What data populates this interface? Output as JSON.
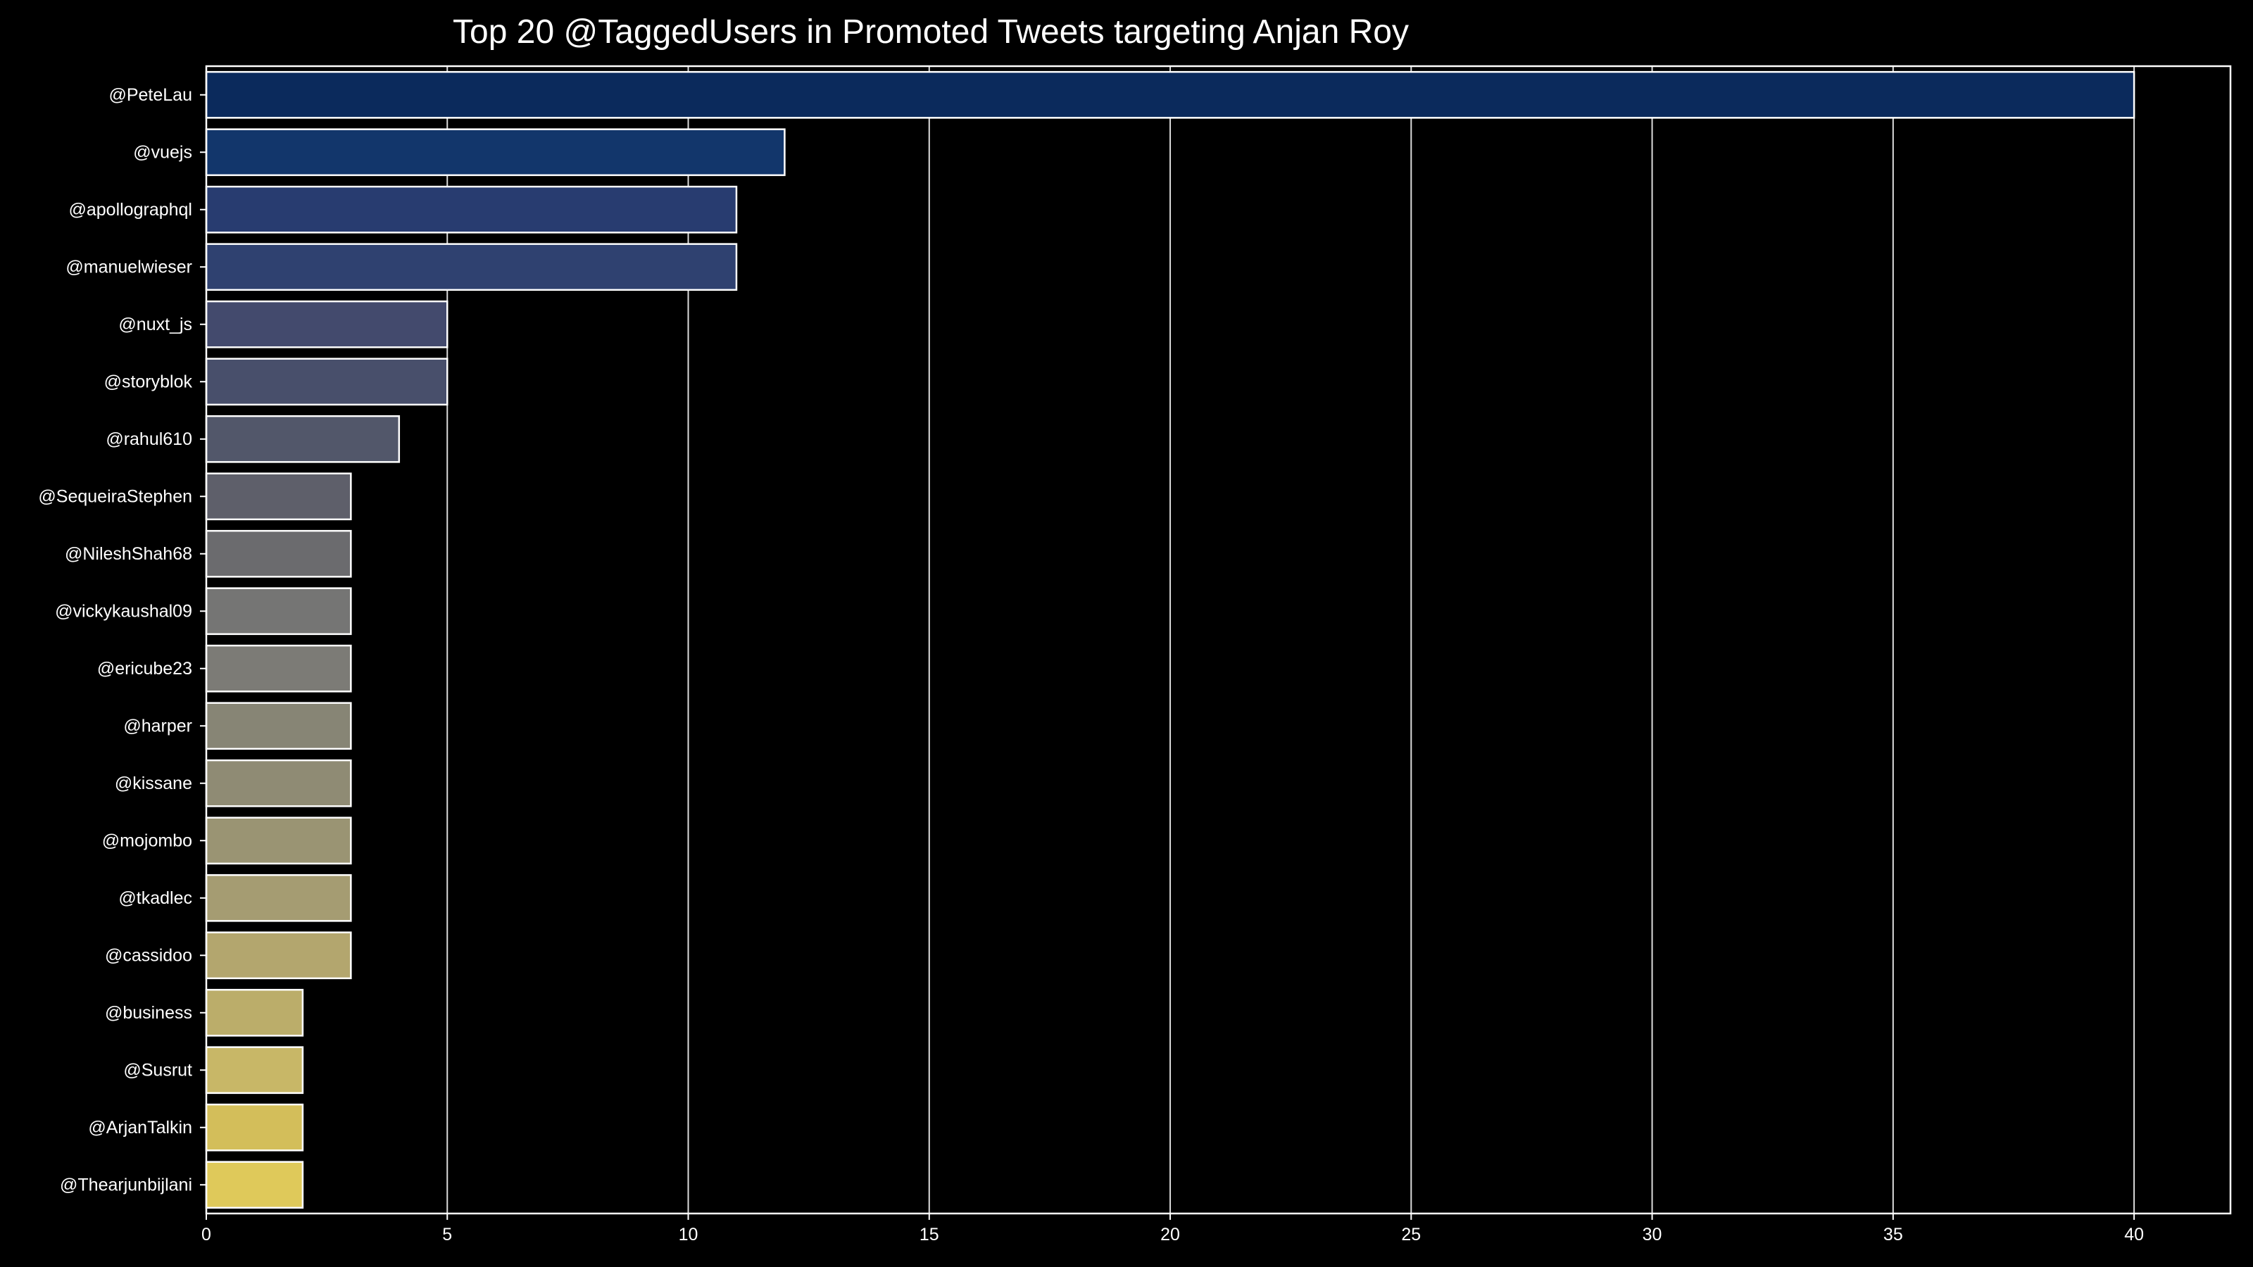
{
  "chart_data": {
    "type": "bar",
    "orientation": "horizontal",
    "title": "Top 20 @TaggedUsers in Promoted Tweets targeting Anjan Roy",
    "xlabel": "",
    "ylabel": "",
    "categories": [
      "@PeteLau",
      "@vuejs",
      "@apollographql",
      "@manuelwieser",
      "@nuxt_js",
      "@storyblok",
      "@rahul610",
      "@SequeiraStephen",
      "@NileshShah68",
      "@vickykaushal09",
      "@ericube23",
      "@harper",
      "@kissane",
      "@mojombo",
      "@tkadlec",
      "@cassidoo",
      "@business",
      "@Susrut",
      "@ArjanTalkin",
      "@Thearjunbijlani"
    ],
    "values": [
      40,
      12,
      11,
      11,
      5,
      5,
      4,
      3,
      3,
      3,
      3,
      3,
      3,
      3,
      3,
      3,
      2,
      2,
      2,
      2
    ],
    "xlim": [
      0,
      42
    ],
    "xticks": [
      0,
      5,
      10,
      15,
      20,
      25,
      30,
      35,
      40
    ],
    "grid": true,
    "legend": "none",
    "colors": [
      "#0b2a5c",
      "#12366b",
      "#283c70",
      "#2f4170",
      "#434a6d",
      "#484f6b",
      "#52576a",
      "#5e5f6a",
      "#6b6b6e",
      "#757574",
      "#7c7b76",
      "#878575",
      "#8f8b74",
      "#9a9473",
      "#a59c72",
      "#b3a66e",
      "#bbad6a",
      "#c8b767",
      "#d3be5a",
      "#dfc95a"
    ],
    "background_color": "#000000",
    "text_color": "#ffffff"
  }
}
